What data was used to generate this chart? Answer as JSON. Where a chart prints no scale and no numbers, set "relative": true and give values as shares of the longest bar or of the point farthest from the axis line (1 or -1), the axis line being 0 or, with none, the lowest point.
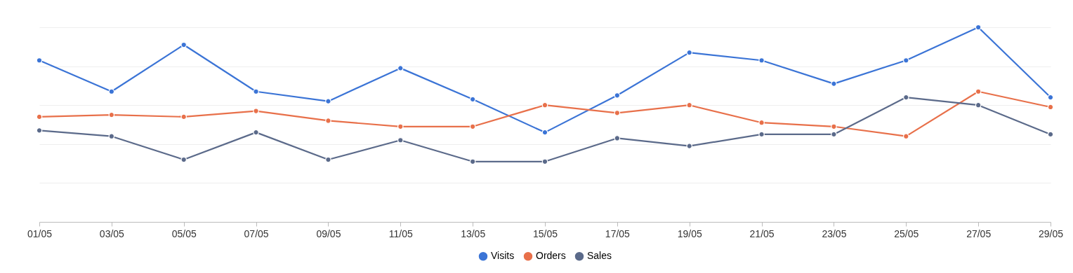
{
  "chart_data": {
    "type": "line",
    "relative": true,
    "categories": [
      "01/05",
      "03/05",
      "05/05",
      "07/05",
      "09/05",
      "11/05",
      "13/05",
      "15/05",
      "17/05",
      "19/05",
      "21/05",
      "23/05",
      "25/05",
      "27/05",
      "29/05"
    ],
    "series": [
      {
        "name": "Visits",
        "color": "#3b74d6",
        "values": [
          0.83,
          0.67,
          0.91,
          0.67,
          0.62,
          0.79,
          0.63,
          0.46,
          0.65,
          0.87,
          0.83,
          0.71,
          0.83,
          1.0,
          0.64
        ]
      },
      {
        "name": "Orders",
        "color": "#e8704a",
        "values": [
          0.54,
          0.55,
          0.54,
          0.57,
          0.52,
          0.49,
          0.49,
          0.6,
          0.56,
          0.6,
          0.51,
          0.49,
          0.44,
          0.67,
          0.59
        ]
      },
      {
        "name": "Sales",
        "color": "#5b6a8a",
        "values": [
          0.47,
          0.44,
          0.32,
          0.46,
          0.32,
          0.42,
          0.31,
          0.31,
          0.43,
          0.39,
          0.45,
          0.45,
          0.64,
          0.6,
          0.45
        ]
      }
    ],
    "grid": "y",
    "legend": "bottom",
    "marker": "circle",
    "line_style": "solid"
  }
}
